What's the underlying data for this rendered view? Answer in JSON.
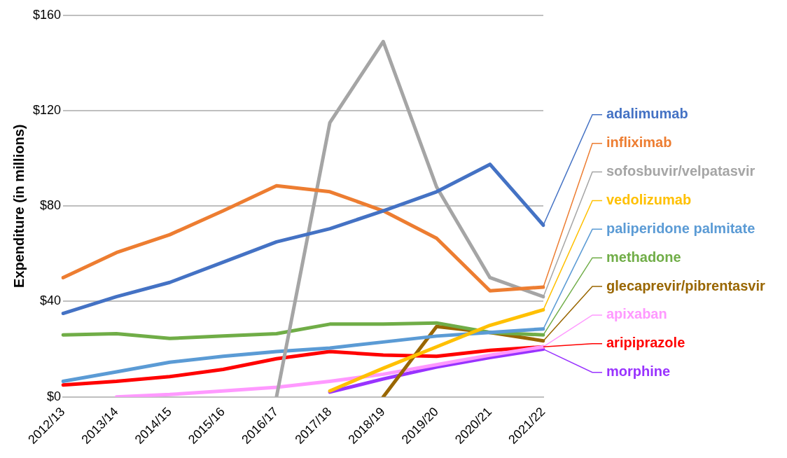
{
  "chart_data": {
    "type": "line",
    "ylabel": "Expenditure (in millions)",
    "categories": [
      "2012/13",
      "2013/14",
      "2014/15",
      "2015/16",
      "2016/17",
      "2017/18",
      "2018/19",
      "2019/20",
      "2020/21",
      "2021/22"
    ],
    "ylim": [
      0,
      160
    ],
    "yticks": [
      {
        "value": 0,
        "label": "$0"
      },
      {
        "value": 40,
        "label": "$40"
      },
      {
        "value": 80,
        "label": "$80"
      },
      {
        "value": 120,
        "label": "$120"
      },
      {
        "value": 160,
        "label": "$160"
      }
    ],
    "grid": "y",
    "legend": "right",
    "marker": "none",
    "series": [
      {
        "name": "adalimumab",
        "color": "#4472c4",
        "values": [
          35,
          42,
          48,
          56.5,
          65,
          70.5,
          78,
          86,
          97.5,
          72
        ]
      },
      {
        "name": "infliximab",
        "color": "#ed7d31",
        "values": [
          50,
          60.5,
          68,
          78,
          88.5,
          86,
          78,
          66.5,
          44.5,
          46
        ]
      },
      {
        "name": "sofosbuvir/velpatasvir",
        "color": "#a5a5a5",
        "values": [
          null,
          null,
          null,
          null,
          0,
          115,
          149,
          88,
          50,
          42
        ]
      },
      {
        "name": "vedolizumab",
        "color": "#ffc000",
        "values": [
          null,
          null,
          null,
          null,
          null,
          2.5,
          12,
          21,
          30,
          36.5
        ]
      },
      {
        "name": "paliperidone palmitate",
        "color": "#5b9bd5",
        "values": [
          6.5,
          10.5,
          14.5,
          17,
          19,
          20.5,
          23,
          25.5,
          27,
          28.5
        ]
      },
      {
        "name": "methadone",
        "color": "#70ad47",
        "values": [
          26,
          26.5,
          24.5,
          25.5,
          26.5,
          30.5,
          30.5,
          31,
          27,
          26
        ]
      },
      {
        "name": "glecaprevir/pibrentasvir",
        "color": "#996600",
        "values": [
          null,
          null,
          null,
          null,
          null,
          null,
          0,
          29.5,
          27,
          23.5
        ]
      },
      {
        "name": "apixaban",
        "color": "#ff99ff",
        "values": [
          null,
          0,
          1,
          2.5,
          4,
          6.5,
          9.5,
          13.5,
          17.5,
          21
        ]
      },
      {
        "name": "aripiprazole",
        "color": "#ff0000",
        "values": [
          5,
          6.5,
          8.5,
          11.5,
          16,
          19,
          17.5,
          17,
          19.5,
          21
        ]
      },
      {
        "name": "morphine",
        "color": "#9933ff",
        "values": [
          null,
          null,
          null,
          null,
          null,
          2,
          7.5,
          12.5,
          16.5,
          20
        ]
      }
    ]
  }
}
